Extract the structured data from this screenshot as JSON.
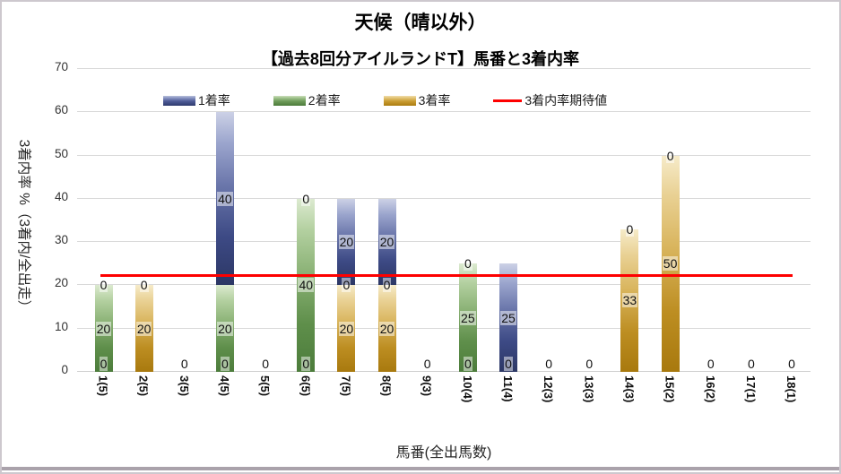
{
  "chart": {
    "title": "天候（晴以外）",
    "subtitle": "【過去8回分アイルランドT】馬番と3着内率",
    "y_axis": {
      "title": "3着内率 %（3着内/全出走）",
      "ticks": [
        70,
        60,
        50,
        40,
        30,
        20,
        10,
        0
      ],
      "max": 70
    },
    "x_axis": {
      "title": "馬番(全出馬数)"
    },
    "legend": [
      {
        "label": "1着率",
        "style": "swatch-blue",
        "color": "#3b4a86"
      },
      {
        "label": "2着率",
        "style": "swatch-green",
        "color": "#5f8f4c"
      },
      {
        "label": "3着率",
        "style": "swatch-gold",
        "color": "#c49a2a"
      },
      {
        "label": "3着内率期待値",
        "style": "line-red",
        "color": "#fe0000"
      }
    ]
  },
  "chart_data": {
    "type": "bar",
    "stacked": true,
    "title": "【過去8回分アイルランドT】馬番と3着内率",
    "xlabel": "馬番(全出馬数)",
    "ylabel": "3着内率 %（3着内/全出走）",
    "ylim": [
      0,
      70
    ],
    "grid": true,
    "legend_position": "top",
    "data_labels": true,
    "categories": [
      "1(5)",
      "2(5)",
      "3(5)",
      "4(5)",
      "5(5)",
      "6(5)",
      "7(5)",
      "8(5)",
      "9(3)",
      "10(4)",
      "11(4)",
      "12(3)",
      "13(3)",
      "14(3)",
      "15(2)",
      "16(2)",
      "17(1)",
      "18(1)"
    ],
    "series": [
      {
        "name": "3着率",
        "css": "gold",
        "color": "#c49a2a",
        "values": [
          0,
          20,
          0,
          0,
          0,
          0,
          20,
          20,
          0,
          0,
          0,
          0,
          0,
          33,
          50,
          0,
          0,
          0
        ]
      },
      {
        "name": "2着率",
        "css": "green",
        "color": "#5f8f4c",
        "values": [
          20,
          0,
          0,
          20,
          0,
          40,
          0,
          0,
          0,
          25,
          0,
          0,
          0,
          0,
          0,
          0,
          0,
          0
        ]
      },
      {
        "name": "1着率",
        "css": "blue",
        "color": "#3b4a86",
        "values": [
          0,
          0,
          0,
          40,
          0,
          0,
          20,
          20,
          0,
          0,
          25,
          0,
          0,
          0,
          0,
          0,
          0,
          0
        ]
      }
    ],
    "reference_line": {
      "name": "3着内率期待値",
      "value": 22.3,
      "color": "#fe0000"
    }
  }
}
